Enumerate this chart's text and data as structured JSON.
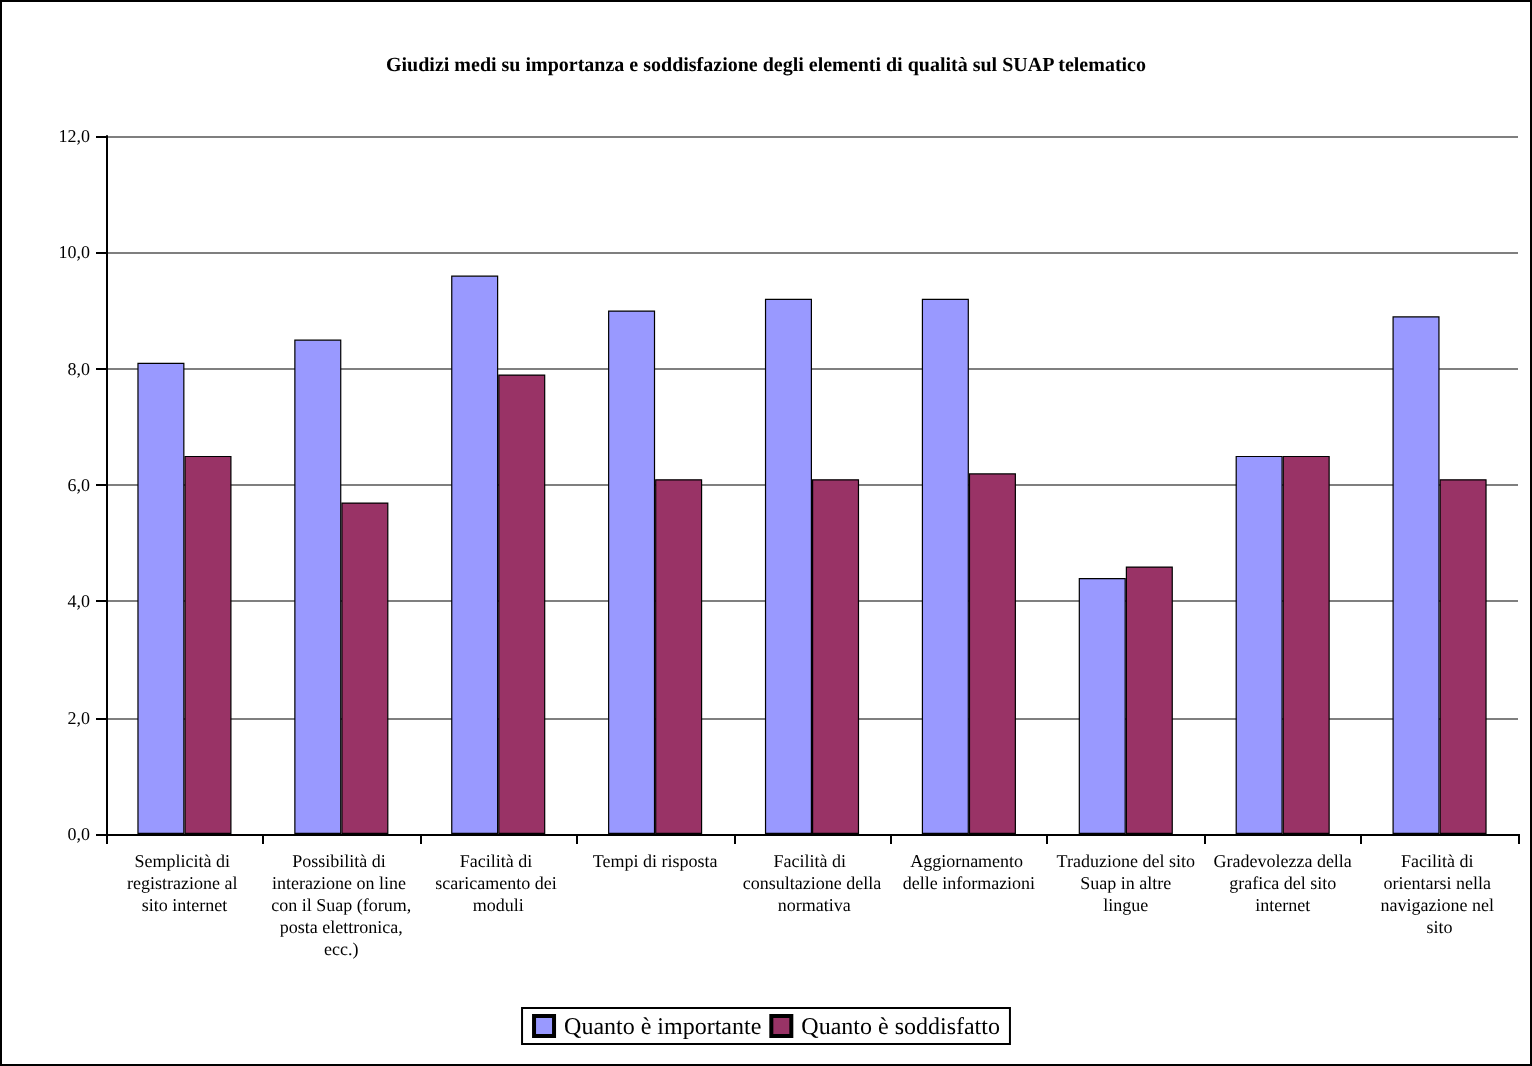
{
  "chart_data": {
    "type": "bar",
    "title": "Giudizi medi su importanza e soddisfazione degli elementi di qualità sul SUAP telematico",
    "categories": [
      "Semplicità di registrazione al sito internet",
      "Possibilità di interazione on line con il Suap (forum, posta elettronica, ecc.)",
      "Facilità di scaricamento dei moduli",
      "Tempi di risposta",
      "Facilità di consultazione della normativa",
      "Aggiornamento delle informazioni",
      "Traduzione del sito Suap in altre lingue",
      "Gradevolezza della grafica del sito internet",
      "Facilità di orientarsi nella navigazione nel sito"
    ],
    "series": [
      {
        "name": "Quanto è importante",
        "color": "#9999ff",
        "values": [
          8.1,
          8.5,
          9.6,
          9.0,
          9.2,
          9.2,
          4.4,
          6.5,
          8.9
        ]
      },
      {
        "name": "Quanto è soddisfatto",
        "color": "#993366",
        "values": [
          6.5,
          5.7,
          7.9,
          6.1,
          6.1,
          6.2,
          4.6,
          6.5,
          6.1
        ]
      }
    ],
    "ylim": [
      0,
      12
    ],
    "yticks": [
      {
        "value": 0,
        "label": "0,0"
      },
      {
        "value": 2,
        "label": "2,0"
      },
      {
        "value": 4,
        "label": "4,0"
      },
      {
        "value": 6,
        "label": "6,0"
      },
      {
        "value": 8,
        "label": "8,0"
      },
      {
        "value": 10,
        "label": "10,0"
      },
      {
        "value": 12,
        "label": "12,0"
      }
    ],
    "grid": "y",
    "legend": "bottom"
  }
}
